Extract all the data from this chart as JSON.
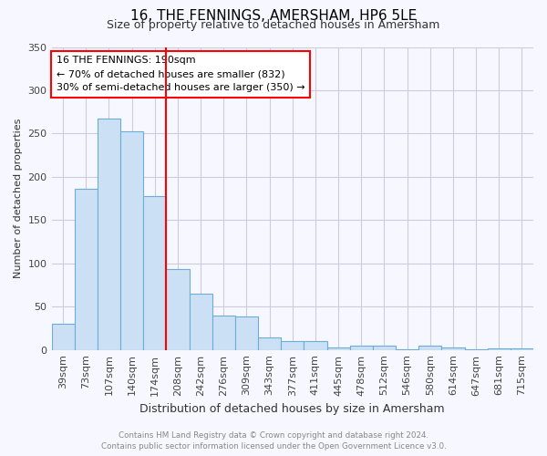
{
  "title": "16, THE FENNINGS, AMERSHAM, HP6 5LE",
  "subtitle": "Size of property relative to detached houses in Amersham",
  "xlabel": "Distribution of detached houses by size in Amersham",
  "ylabel": "Number of detached properties",
  "bar_labels": [
    "39sqm",
    "73sqm",
    "107sqm",
    "140sqm",
    "174sqm",
    "208sqm",
    "242sqm",
    "276sqm",
    "309sqm",
    "343sqm",
    "377sqm",
    "411sqm",
    "445sqm",
    "478sqm",
    "512sqm",
    "546sqm",
    "580sqm",
    "614sqm",
    "647sqm",
    "681sqm",
    "715sqm"
  ],
  "bar_values": [
    30,
    186,
    267,
    253,
    178,
    93,
    65,
    40,
    39,
    14,
    10,
    10,
    3,
    5,
    5,
    1,
    5,
    3,
    1,
    2,
    2
  ],
  "bar_color": "#cce0f5",
  "bar_edge_color": "#6aaed6",
  "vline_color": "red",
  "ylim": [
    0,
    350
  ],
  "yticks": [
    0,
    50,
    100,
    150,
    200,
    250,
    300,
    350
  ],
  "annotation_title": "16 THE FENNINGS: 190sqm",
  "annotation_line1": "← 70% of detached houses are smaller (832)",
  "annotation_line2": "30% of semi-detached houses are larger (350) →",
  "footer_line1": "Contains HM Land Registry data © Crown copyright and database right 2024.",
  "footer_line2": "Contains public sector information licensed under the Open Government Licence v3.0.",
  "bg_color": "#f7f7ff",
  "grid_color": "#ccccdd"
}
